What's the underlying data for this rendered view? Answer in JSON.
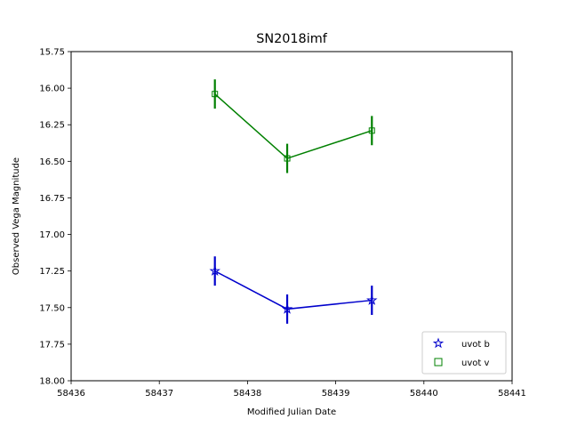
{
  "chart_data": {
    "type": "scatter",
    "title": "SN2018imf",
    "xlabel": "Modified Julian Date",
    "ylabel": "Observed Vega Magnitude",
    "xlim": [
      58436,
      58441
    ],
    "ylim": [
      18.0,
      15.75
    ],
    "y_inverted": true,
    "x_ticks": [
      "58436",
      "58437",
      "58438",
      "58439",
      "58440",
      "58441"
    ],
    "y_ticks": [
      "15.75",
      "16.00",
      "16.25",
      "16.50",
      "16.75",
      "17.00",
      "17.25",
      "17.50",
      "17.75",
      "18.00"
    ],
    "legend_position": "lower right",
    "grid": false,
    "series": [
      {
        "name": "uvot b",
        "color": "#0000cc",
        "marker": "star",
        "x": [
          58437.63,
          58438.45,
          58439.41
        ],
        "y": [
          17.25,
          17.51,
          17.45
        ],
        "yerr": [
          0.1,
          0.1,
          0.1
        ]
      },
      {
        "name": "uvot v",
        "color": "#008000",
        "marker": "square",
        "x": [
          58437.63,
          58438.45,
          58439.41
        ],
        "y": [
          16.04,
          16.48,
          16.29
        ],
        "yerr": [
          0.1,
          0.1,
          0.1
        ]
      }
    ]
  }
}
